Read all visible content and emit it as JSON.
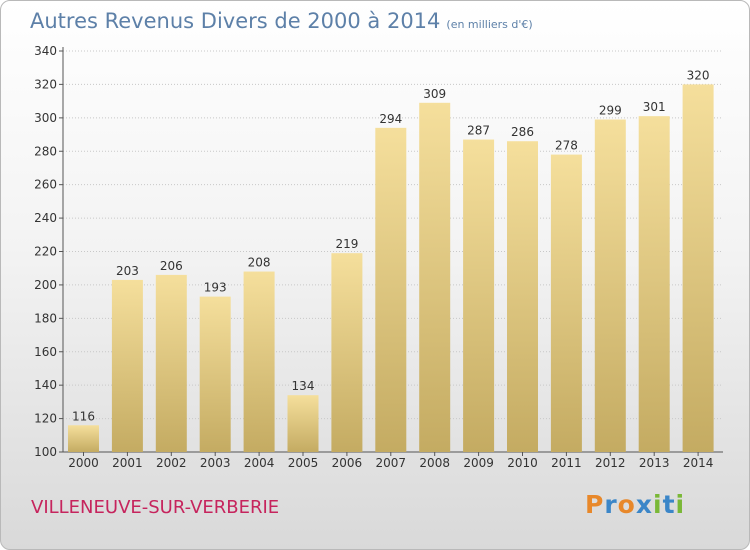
{
  "title": "Autres Revenus Divers de 2000 à 2014",
  "unit_label": "(en milliers d'€)",
  "town": "VILLENEUVE-SUR-VERBERIE",
  "logo": {
    "text": "Proxiti",
    "letter_colors": [
      "#e8882a",
      "#3b86c8",
      "#e8882a",
      "#3b86c8",
      "#7ab837",
      "#3b86c8",
      "#7ab837"
    ]
  },
  "colors": {
    "title": "#5d80a8",
    "town": "#c6245d",
    "bar_light": "#f5df9c",
    "bar_dark": "#c4ab62",
    "gridline": "#c8c8c8"
  },
  "chart_data": {
    "type": "bar",
    "title": "Autres Revenus Divers de 2000 à 2014",
    "xlabel": "",
    "ylabel": "",
    "categories": [
      "2000",
      "2001",
      "2002",
      "2003",
      "2004",
      "2005",
      "2006",
      "2007",
      "2008",
      "2009",
      "2010",
      "2011",
      "2012",
      "2013",
      "2014"
    ],
    "values": [
      116,
      203,
      206,
      193,
      208,
      134,
      219,
      294,
      309,
      287,
      286,
      278,
      299,
      301,
      320
    ],
    "ylim": [
      100,
      340
    ],
    "yticks": [
      100,
      120,
      140,
      160,
      180,
      200,
      220,
      240,
      260,
      280,
      300,
      320,
      340
    ],
    "grid": true,
    "data_labels": true
  }
}
